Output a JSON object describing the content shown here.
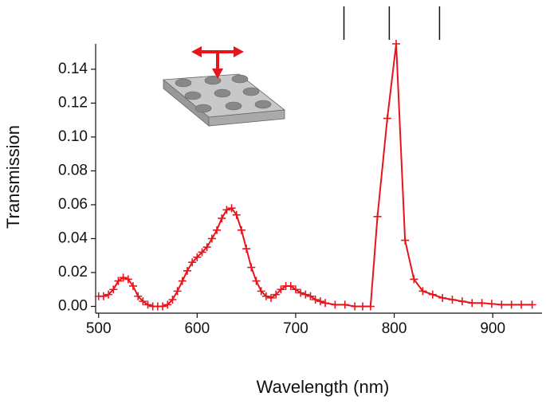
{
  "chart_data": {
    "type": "line",
    "x_label": "Wavelength (nm)",
    "y_label": "Transmission",
    "x": [
      500,
      505,
      510,
      515,
      520,
      525,
      530,
      535,
      540,
      545,
      550,
      555,
      560,
      565,
      570,
      575,
      580,
      585,
      590,
      595,
      600,
      605,
      610,
      615,
      620,
      625,
      630,
      635,
      640,
      645,
      650,
      655,
      660,
      665,
      670,
      675,
      680,
      685,
      690,
      695,
      700,
      705,
      710,
      715,
      720,
      725,
      730,
      740,
      750,
      760,
      768,
      776,
      783,
      793,
      802,
      811,
      820,
      829,
      839,
      849,
      859,
      869,
      879,
      889,
      899,
      909,
      919,
      929,
      940
    ],
    "series": [
      {
        "name": "Transmission",
        "color": "#e8141b",
        "values": [
          0.006,
          0.006,
          0.007,
          0.01,
          0.015,
          0.017,
          0.016,
          0.012,
          0.006,
          0.003,
          0.001,
          0.0,
          0.0,
          0.0,
          0.001,
          0.004,
          0.009,
          0.015,
          0.021,
          0.026,
          0.029,
          0.032,
          0.035,
          0.04,
          0.045,
          0.052,
          0.057,
          0.058,
          0.054,
          0.045,
          0.034,
          0.023,
          0.015,
          0.009,
          0.006,
          0.005,
          0.007,
          0.01,
          0.012,
          0.012,
          0.01,
          0.008,
          0.007,
          0.006,
          0.004,
          0.003,
          0.002,
          0.001,
          0.001,
          0.0,
          0.0,
          0.0,
          0.053,
          0.111,
          0.155,
          0.039,
          0.016,
          0.009,
          0.007,
          0.005,
          0.004,
          0.003,
          0.002,
          0.002,
          0.0015,
          0.001,
          0.001,
          0.001,
          0.001
        ]
      }
    ],
    "markers": [
      749,
      795,
      846
    ],
    "xlim": [
      497,
      950
    ],
    "ylim": [
      -0.004,
      0.155
    ],
    "xticks": [
      500,
      600,
      700,
      800,
      900
    ],
    "yticks": [
      {
        "value": 0,
        "label": "0.00"
      },
      0.02,
      0.04,
      0.06,
      0.08,
      {
        "value": 0.1,
        "label": "0.10"
      },
      0.12,
      0.14
    ]
  }
}
